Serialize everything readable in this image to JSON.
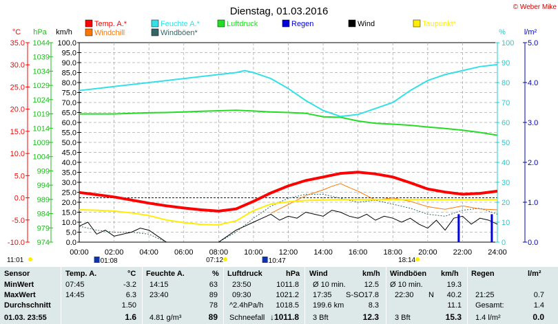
{
  "chart_data": {
    "type": "line",
    "title": "Dienstag, 01.03.2016",
    "copyright": "© Weber Mike",
    "legend": [
      {
        "label": "Temp. A.*",
        "color": "#ff0000"
      },
      {
        "label": "Feuchte A.*",
        "color": "#33e0e8"
      },
      {
        "label": "Luftdruck",
        "color": "#22dd22"
      },
      {
        "label": "Regen",
        "color": "#0000dd"
      },
      {
        "label": "Wind",
        "color": "#000000"
      },
      {
        "label": "Taupunkt*",
        "color": "#ffee00"
      },
      {
        "label": "Windchill",
        "color": "#ff7700"
      },
      {
        "label": "Windböen*",
        "color": "#336666"
      }
    ],
    "axes": {
      "temp": {
        "unit": "°C",
        "min": -10,
        "max": 35,
        "color": "#ff0000",
        "ticks": [
          "35.0",
          "30.0",
          "25.0",
          "20.0",
          "15.0",
          "10.0",
          "5.0",
          "0.0",
          "-5.0",
          "-10.0"
        ]
      },
      "pressure": {
        "unit": "hPa",
        "min": 974,
        "max": 1044,
        "color": "#22bb22",
        "ticks": [
          "1044",
          "1039",
          "1034",
          "1029",
          "1024",
          "1019",
          "1014",
          "1009",
          "1004",
          "999",
          "994",
          "989",
          "984",
          "979",
          "974"
        ]
      },
      "wind": {
        "unit": "km/h",
        "min": 0,
        "max": 100,
        "color": "#000000",
        "ticks": [
          "100.0",
          "95.0",
          "90.0",
          "85.0",
          "80.0",
          "75.0",
          "70.0",
          "65.0",
          "60.0",
          "55.0",
          "50.0",
          "45.0",
          "40.0",
          "35.0",
          "30.0",
          "25.0",
          "20.0",
          "15.0",
          "10.0",
          "5.0",
          "0.0"
        ]
      },
      "humidity": {
        "unit": "%",
        "min": 0,
        "max": 100,
        "color": "#22cccc",
        "ticks": [
          "100",
          "90",
          "80",
          "70",
          "60",
          "50",
          "40",
          "30",
          "20",
          "10",
          "0"
        ]
      },
      "rain": {
        "unit": "l/m²",
        "min": 0,
        "max": 5,
        "color": "#0000bb",
        "ticks": [
          "5.0",
          "4.0",
          "3.0",
          "2.0",
          "1.0",
          "0.0"
        ]
      },
      "time": {
        "ticks": [
          "00:00",
          "02:00",
          "04:00",
          "06:00",
          "08:00",
          "10:00",
          "12:00",
          "14:00",
          "16:00",
          "18:00",
          "20:00",
          "22:00",
          "24:00"
        ]
      }
    },
    "sun_labels": [
      {
        "label": "11:01",
        "type": "moonset",
        "hour": 0
      },
      {
        "label": "01:08",
        "type": "moonrise",
        "hour": 1.13
      },
      {
        "label": "07:12",
        "type": "sunrise",
        "hour": 7.2
      },
      {
        "label": "10:47",
        "type": "moon",
        "hour": 10.78
      },
      {
        "label": "18:14",
        "type": "sunset",
        "hour": 18.23
      }
    ],
    "series": {
      "temp": {
        "name": "Temp. A.*",
        "x": [
          0,
          1,
          2,
          3,
          4,
          5,
          6,
          7,
          8,
          9,
          10,
          11,
          12,
          13,
          14,
          15,
          16,
          17,
          18,
          19,
          20,
          21,
          22,
          23,
          24
        ],
        "values": [
          1.2,
          0.7,
          0.2,
          -0.5,
          -1.2,
          -1.8,
          -2.3,
          -2.7,
          -3.0,
          -2.5,
          -0.8,
          1.1,
          2.7,
          3.9,
          4.7,
          5.5,
          5.8,
          5.4,
          4.7,
          3.4,
          2.0,
          1.3,
          0.8,
          1.0,
          1.5
        ]
      },
      "humidity": {
        "name": "Feuchte A.*",
        "x": [
          0,
          1,
          2,
          3,
          4,
          5,
          6,
          7,
          8,
          9,
          9.5,
          10,
          11,
          12,
          13,
          14,
          15,
          16,
          17,
          18,
          19,
          20,
          21,
          22,
          23,
          24
        ],
        "values": [
          76,
          77,
          78,
          79,
          80,
          81,
          82,
          83,
          84,
          85,
          86,
          85,
          82,
          77,
          71,
          66,
          63,
          64,
          67,
          70,
          76,
          81,
          84,
          86,
          88,
          89
        ]
      },
      "pressure": {
        "name": "Luftdruck",
        "x": [
          0,
          1,
          2,
          3,
          4,
          5,
          6,
          7,
          8,
          9,
          10,
          11,
          12,
          13,
          14,
          15,
          16,
          17,
          18,
          19,
          20,
          21,
          22,
          23,
          24
        ],
        "values": [
          1019.0,
          1019.0,
          1019.0,
          1019.2,
          1019.4,
          1019.5,
          1019.7,
          1019.9,
          1020.1,
          1020.3,
          1020.0,
          1019.7,
          1019.5,
          1019.2,
          1018.0,
          1017.8,
          1016.5,
          1015.7,
          1015.4,
          1015.0,
          1014.4,
          1013.9,
          1013.3,
          1012.5,
          1011.5
        ]
      },
      "dewpoint": {
        "name": "Taupunkt*",
        "x": [
          0,
          1,
          2,
          3,
          4,
          5,
          6,
          7,
          8,
          9,
          10,
          11,
          12,
          13,
          14,
          15,
          16,
          17,
          18,
          19,
          20,
          21,
          22,
          23,
          24
        ],
        "values": [
          -2.7,
          -2.8,
          -3.0,
          -3.4,
          -4.0,
          -5.0,
          -5.6,
          -6.0,
          -6.1,
          -5.2,
          -2.9,
          -1.4,
          -0.9,
          -0.6,
          -0.5,
          -0.4,
          -0.4,
          -0.4,
          -0.4,
          -0.4,
          -0.4,
          -0.4,
          -0.4,
          -0.4,
          -0.4
        ]
      },
      "wind": {
        "name": "Wind",
        "x": [
          0,
          0.5,
          1,
          1.5,
          2,
          2.5,
          3,
          3.5,
          4,
          4.5,
          5,
          8,
          8.5,
          9,
          9.5,
          10,
          10.5,
          11,
          11.5,
          12,
          12.5,
          13,
          13.5,
          14,
          14.5,
          15,
          15.5,
          16,
          16.5,
          17,
          17.5,
          18,
          18.5,
          19,
          19.5,
          20,
          20.5,
          21,
          21.5,
          22,
          22.5,
          23,
          23.5,
          24
        ],
        "values": [
          8,
          10,
          4,
          6,
          3,
          4,
          5,
          7,
          6,
          3,
          0,
          0,
          3,
          6,
          8,
          10,
          12,
          14,
          11,
          13,
          12,
          15,
          14,
          13,
          16,
          15,
          13,
          12,
          14,
          11,
          13,
          12,
          10,
          12,
          9,
          7,
          11,
          6,
          12,
          13,
          9,
          12,
          11,
          9
        ]
      },
      "windchill": {
        "name": "Windchill",
        "x": [
          11,
          12,
          13,
          14,
          14.5,
          15,
          15.5,
          16,
          17,
          18,
          19,
          20,
          21,
          22,
          23,
          24
        ],
        "values": [
          -3.5,
          -1.5,
          0.5,
          1.8,
          2.6,
          3.2,
          2.3,
          1.5,
          -0.5,
          0.0,
          -0.8,
          -2.0,
          -2.6,
          -1.8,
          -2.5,
          -2.7
        ]
      },
      "gusts": {
        "name": "Windböen*",
        "x": [
          0,
          1,
          2,
          3,
          4,
          5,
          8,
          9,
          10,
          11,
          12,
          13,
          14,
          15,
          16,
          17,
          18,
          19,
          20,
          21,
          22,
          23,
          24
        ],
        "values": [
          8,
          6,
          5,
          5,
          4,
          0,
          0,
          5,
          12,
          18,
          22,
          24,
          24,
          22,
          20,
          21,
          19,
          17,
          14,
          13,
          16,
          17,
          14
        ]
      },
      "rain": {
        "name": "Regen",
        "bars": [
          {
            "hour": 21.8,
            "value": 0.7
          },
          {
            "hour": 23.7,
            "value": 0.7
          }
        ]
      }
    }
  },
  "table": {
    "headers": {
      "sensor": "Sensor",
      "temp": "Temp. A.",
      "temp_unit": "°C",
      "hum": "Feuchte A.",
      "hum_unit": "%",
      "press": "Luftdruck",
      "press_unit": "hPa",
      "wind": "Wind",
      "wind_unit": "km/h",
      "gust": "Windböen",
      "gust_unit": "km/h",
      "rain": "Regen",
      "rain_unit": "l/m²"
    },
    "rows": {
      "min": {
        "label": "MinWert",
        "temp_time": "07:45",
        "temp_val": "-3.2",
        "hum_time": "14:15",
        "hum_val": "63",
        "press_time": "23:50",
        "press_val": "1011.8",
        "wind_lbl": "Ø 10 min.",
        "wind_val": "12.5",
        "gust_lbl": "Ø 10 min.",
        "gust_val": "19.3",
        "rain_time": "",
        "rain_val": ""
      },
      "max": {
        "label": "MaxWert",
        "temp_time": "14:45",
        "temp_val": "6.3",
        "hum_time": "23:40",
        "hum_val": "89",
        "press_time": "09:30",
        "press_val": "1021.2",
        "wind_time": "17:35",
        "wind_dir": "S-SO",
        "wind_val": "17.8",
        "gust_time": "22:30",
        "gust_dir": "N",
        "gust_val": "40.2",
        "rain_time": "21:25",
        "rain_val": "0.7"
      },
      "avg": {
        "label": "Durchschnitt",
        "temp_val": "1.50",
        "hum_val": "78",
        "press_lbl": "^2.4hPa/h",
        "press_val": "1018.5",
        "wind_lbl": "199.6 km",
        "wind_val": "8.3",
        "gust_val": "11.1",
        "rain_lbl": "Gesamt:",
        "rain_val": "1.4"
      },
      "current": {
        "label": "01.03. 23:55",
        "temp_val": "1.6",
        "hum_lbl": "4.81 g/m³",
        "hum_val": "89",
        "press_lbl": "Schneefall",
        "press_val": "↓1011.8",
        "wind_lbl": "3 Bft",
        "wind_val": "12.3",
        "gust_lbl": "3 Bft",
        "gust_val": "15.3",
        "rain_lbl": "1.4 l/m²",
        "rain_val": "0.0"
      }
    }
  }
}
